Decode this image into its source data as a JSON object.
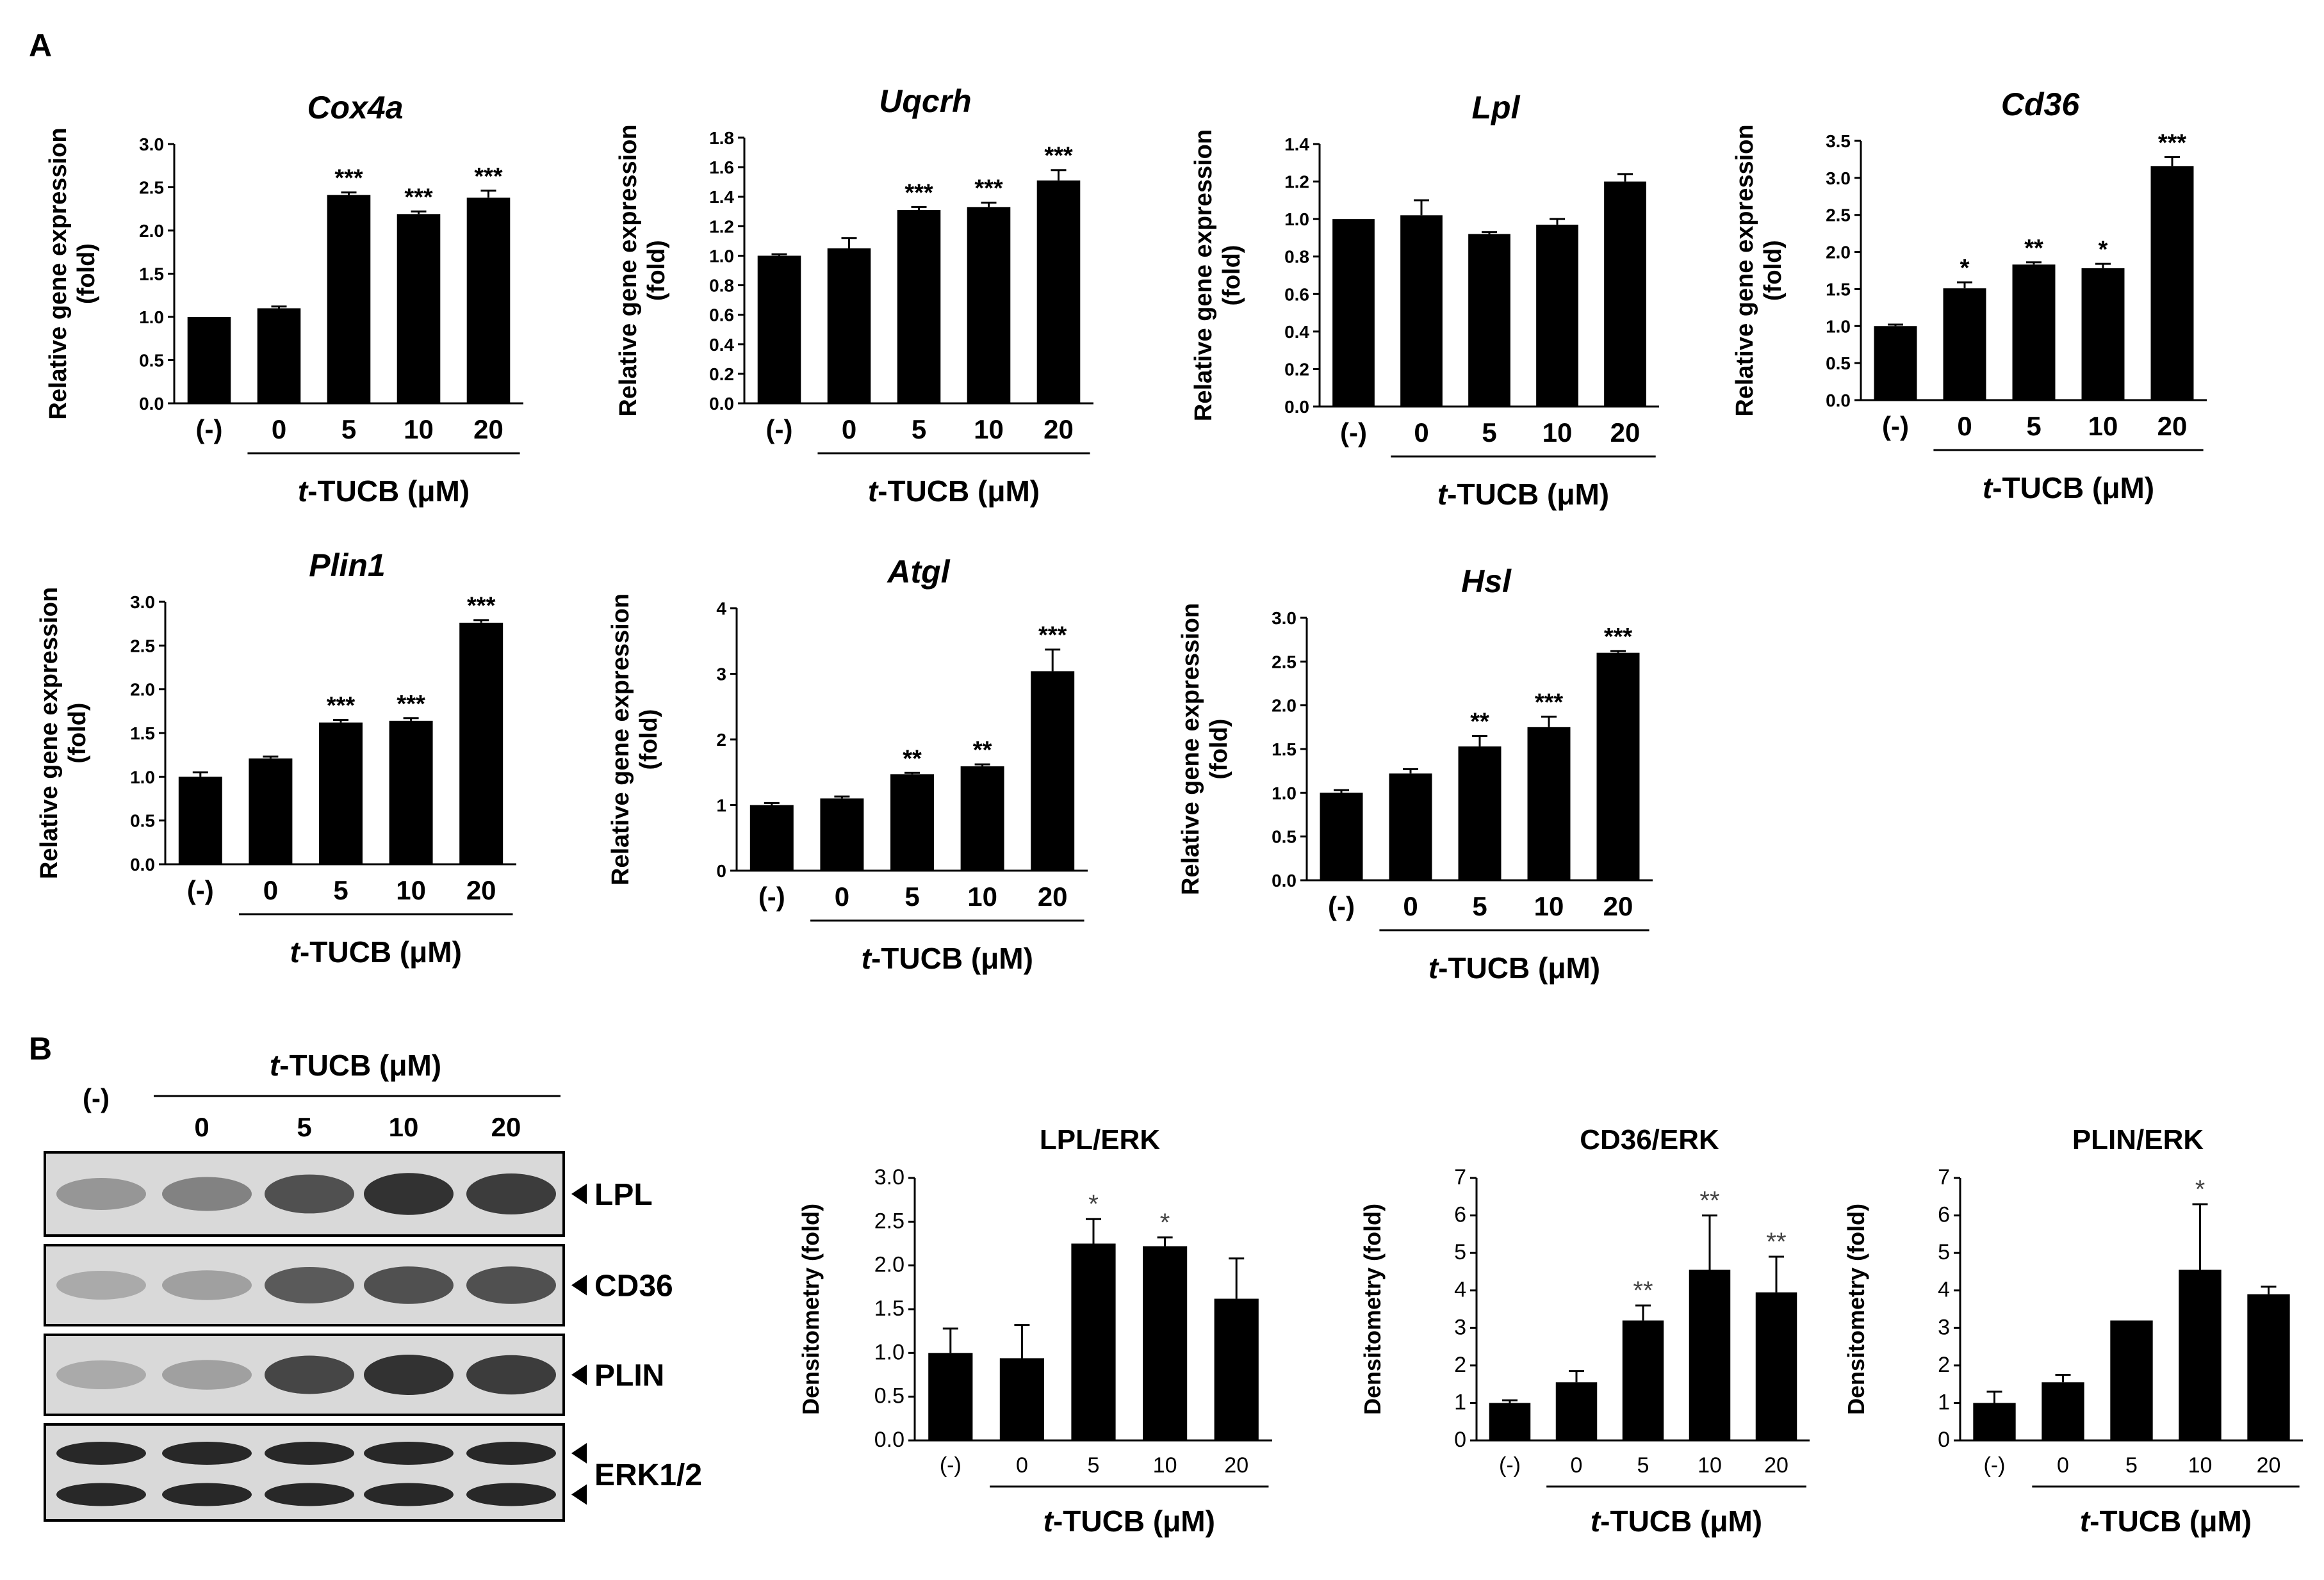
{
  "panels": {
    "a": "A",
    "b": "B"
  },
  "x_axis_label_prefix": "t",
  "x_axis_label_suffix": "-TUCB (μM)",
  "chart_data": [
    {
      "type": "bar",
      "title": "Cox4a",
      "ylabel": "Relative gene expression (fold)",
      "ylim": [
        0,
        3.0
      ],
      "ticks": [
        "0.0",
        "0.5",
        "1.0",
        "1.5",
        "2.0",
        "2.5",
        "3.0"
      ],
      "categories": [
        "(-)",
        "0",
        "5",
        "10",
        "20"
      ],
      "values": [
        1.0,
        1.1,
        2.41,
        2.19,
        2.38
      ],
      "errors": [
        0,
        0.02,
        0.03,
        0.03,
        0.08
      ],
      "significance": [
        "",
        "",
        "***",
        "***",
        "***"
      ]
    },
    {
      "type": "bar",
      "title": "Uqcrh",
      "ylabel": "Relative gene expression (fold)",
      "ylim": [
        0,
        1.8
      ],
      "ticks": [
        "0.0",
        "0.2",
        "0.4",
        "0.6",
        "0.8",
        "1.0",
        "1.2",
        "1.4",
        "1.6",
        "1.8"
      ],
      "categories": [
        "(-)",
        "0",
        "5",
        "10",
        "20"
      ],
      "values": [
        1.0,
        1.05,
        1.31,
        1.33,
        1.51
      ],
      "errors": [
        0.01,
        0.07,
        0.02,
        0.03,
        0.07
      ],
      "significance": [
        "",
        "",
        "***",
        "***",
        "***"
      ]
    },
    {
      "type": "bar",
      "title": "Lpl",
      "ylabel": "Relative gene expression (fold)",
      "ylim": [
        0,
        1.4
      ],
      "ticks": [
        "0.0",
        "0.2",
        "0.4",
        "0.6",
        "0.8",
        "1.0",
        "1.2",
        "1.4"
      ],
      "categories": [
        "(-)",
        "0",
        "5",
        "10",
        "20"
      ],
      "values": [
        1.0,
        1.02,
        0.92,
        0.97,
        1.2
      ],
      "errors": [
        0,
        0.08,
        0.01,
        0.03,
        0.04
      ],
      "significance": [
        "",
        "",
        "",
        "",
        ""
      ]
    },
    {
      "type": "bar",
      "title": "Cd36",
      "ylabel": "Relative gene expression (fold)",
      "ylim": [
        0,
        3.5
      ],
      "ticks": [
        "0.0",
        "0.5",
        "1.0",
        "1.5",
        "2.0",
        "2.5",
        "3.0",
        "3.5"
      ],
      "categories": [
        "(-)",
        "0",
        "5",
        "10",
        "20"
      ],
      "values": [
        1.0,
        1.51,
        1.83,
        1.78,
        3.16
      ],
      "errors": [
        0.02,
        0.08,
        0.03,
        0.06,
        0.12
      ],
      "significance": [
        "",
        "*",
        "**",
        "*",
        "***"
      ]
    },
    {
      "type": "bar",
      "title": "Plin1",
      "ylabel": "Relative gene expression (fold)",
      "ylim": [
        0,
        3.0
      ],
      "ticks": [
        "0.0",
        "0.5",
        "1.0",
        "1.5",
        "2.0",
        "2.5",
        "3.0"
      ],
      "categories": [
        "(-)",
        "0",
        "5",
        "10",
        "20"
      ],
      "values": [
        1.0,
        1.21,
        1.62,
        1.64,
        2.76
      ],
      "errors": [
        0.05,
        0.02,
        0.03,
        0.03,
        0.03
      ],
      "significance": [
        "",
        "",
        "***",
        "***",
        "***"
      ]
    },
    {
      "type": "bar",
      "title": "Atgl",
      "ylabel": "Relative gene expression (fold)",
      "ylim": [
        0,
        4
      ],
      "ticks": [
        "0",
        "1",
        "2",
        "3",
        "4"
      ],
      "categories": [
        "(-)",
        "0",
        "5",
        "10",
        "20"
      ],
      "values": [
        1.0,
        1.1,
        1.47,
        1.59,
        3.04
      ],
      "errors": [
        0.03,
        0.03,
        0.02,
        0.03,
        0.33
      ],
      "significance": [
        "",
        "",
        "**",
        "**",
        "***"
      ]
    },
    {
      "type": "bar",
      "title": "Hsl",
      "ylabel": "Relative gene expression (fold)",
      "ylim": [
        0,
        3.0
      ],
      "ticks": [
        "0.0",
        "0.5",
        "1.0",
        "1.5",
        "2.0",
        "2.5",
        "3.0"
      ],
      "categories": [
        "(-)",
        "0",
        "5",
        "10",
        "20"
      ],
      "values": [
        1.0,
        1.22,
        1.53,
        1.75,
        2.6
      ],
      "errors": [
        0.03,
        0.05,
        0.12,
        0.12,
        0.02
      ],
      "significance": [
        "",
        "",
        "**",
        "***",
        "***"
      ]
    },
    {
      "type": "bar",
      "title": "LPL/ERK",
      "ylabel": "Densitometry (fold)",
      "ylim": [
        0,
        3.0
      ],
      "ticks": [
        "0.0",
        "0.5",
        "1.0",
        "1.5",
        "2.0",
        "2.5",
        "3.0"
      ],
      "categories": [
        "(-)",
        "0",
        "5",
        "10",
        "20"
      ],
      "values": [
        1.0,
        0.94,
        2.25,
        2.22,
        1.62
      ],
      "errors": [
        0.28,
        0.38,
        0.28,
        0.1,
        0.46
      ],
      "significance": [
        "",
        "",
        "*",
        "*",
        ""
      ]
    },
    {
      "type": "bar",
      "title": "CD36/ERK",
      "ylabel": "Densitometry (fold)",
      "ylim": [
        0,
        7
      ],
      "ticks": [
        "0",
        "1",
        "2",
        "3",
        "4",
        "5",
        "6",
        "7"
      ],
      "categories": [
        "(-)",
        "0",
        "5",
        "10",
        "20"
      ],
      "values": [
        1.0,
        1.55,
        3.2,
        4.55,
        3.95
      ],
      "errors": [
        0.07,
        0.3,
        0.4,
        1.45,
        0.95
      ],
      "significance": [
        "",
        "",
        "**",
        "**",
        "**"
      ]
    },
    {
      "type": "bar",
      "title": "PLIN/ERK",
      "ylabel": "Densitometry (fold)",
      "ylim": [
        0,
        7
      ],
      "ticks": [
        "0",
        "1",
        "2",
        "3",
        "4",
        "5",
        "6",
        "7"
      ],
      "categories": [
        "(-)",
        "0",
        "5",
        "10",
        "20"
      ],
      "values": [
        1.0,
        1.55,
        3.2,
        4.55,
        3.9
      ],
      "errors": [
        0.3,
        0.2,
        0,
        1.75,
        0.2
      ],
      "significance": [
        "",
        "",
        "",
        "*",
        ""
      ]
    }
  ],
  "blot": {
    "header_neg": "(-)",
    "header_doses": [
      "0",
      "5",
      "10",
      "20"
    ],
    "rows": [
      {
        "label": "LPL",
        "intensity": [
          0.35,
          0.45,
          0.7,
          0.85,
          0.8
        ]
      },
      {
        "label": "CD36",
        "intensity": [
          0.25,
          0.3,
          0.65,
          0.7,
          0.7
        ]
      },
      {
        "label": "PLIN",
        "intensity": [
          0.25,
          0.3,
          0.75,
          0.85,
          0.8
        ]
      },
      {
        "label": "ERK1/2",
        "intensity": [
          0.9,
          0.9,
          0.9,
          0.9,
          0.9
        ]
      }
    ]
  }
}
